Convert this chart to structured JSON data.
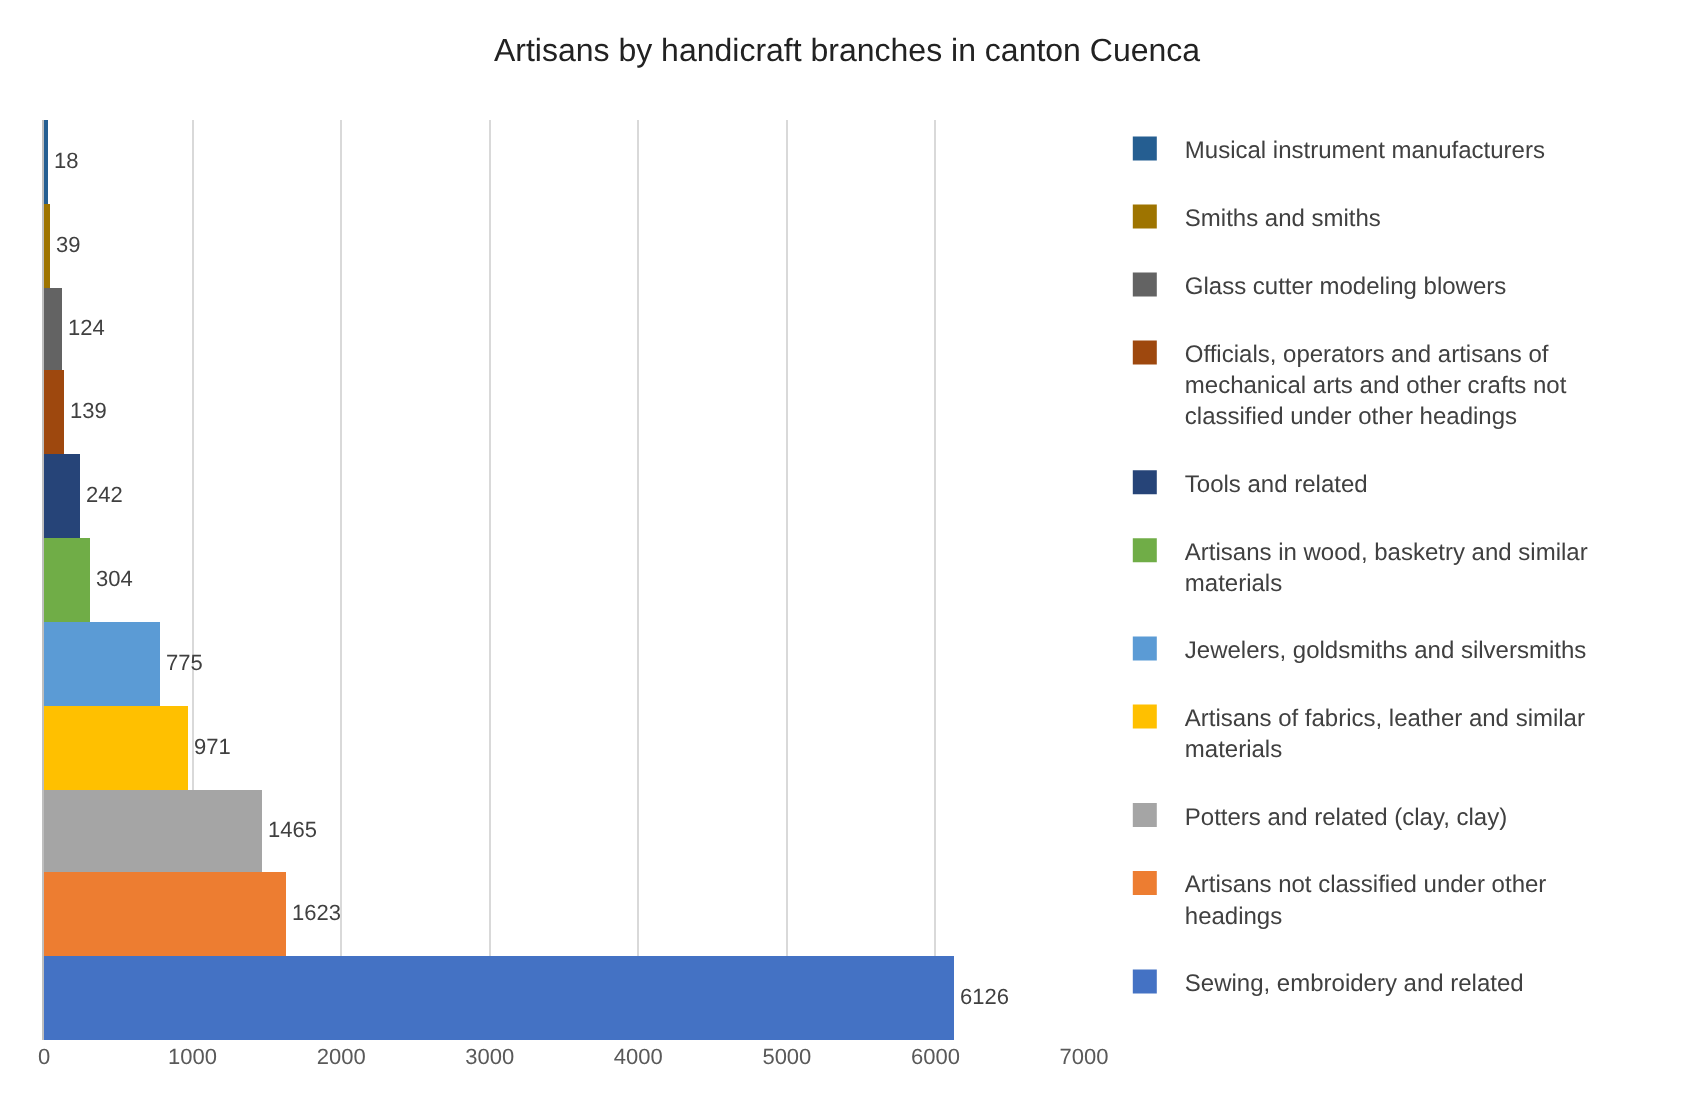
{
  "chart_data": {
    "type": "bar",
    "orientation": "horizontal",
    "title": "Artisans by handicraft branches in canton Cuenca",
    "categories": [
      null,
      null,
      null,
      null,
      null,
      null,
      null,
      null,
      null,
      null,
      null
    ],
    "series": [
      {
        "name": "Musical instrument manufacturers",
        "color": "#255e91",
        "values": [
          18,
          null,
          null,
          null,
          null,
          null,
          null,
          null,
          null,
          null,
          null
        ]
      },
      {
        "name": "Smiths and smiths",
        "color": "#9e7400",
        "values": [
          null,
          39,
          null,
          null,
          null,
          null,
          null,
          null,
          null,
          null,
          null
        ]
      },
      {
        "name": "Glass cutter modeling blowers",
        "color": "#636363",
        "values": [
          null,
          null,
          124,
          null,
          null,
          null,
          null,
          null,
          null,
          null,
          null
        ]
      },
      {
        "name": "Officials, operators and artisans of mechanical arts and other crafts not classified under other headings",
        "color": "#9e480e",
        "values": [
          null,
          null,
          null,
          139,
          null,
          null,
          null,
          null,
          null,
          null,
          null
        ]
      },
      {
        "name": "Tools and related",
        "color": "#264478",
        "values": [
          null,
          null,
          null,
          null,
          242,
          null,
          null,
          null,
          null,
          null,
          null
        ]
      },
      {
        "name": "Artisans in wood, basketry and similar materials",
        "color": "#70ad47",
        "values": [
          null,
          null,
          null,
          null,
          null,
          304,
          null,
          null,
          null,
          null,
          null
        ]
      },
      {
        "name": "Jewelers, goldsmiths and silversmiths",
        "color": "#5b9bd5",
        "values": [
          null,
          null,
          null,
          null,
          null,
          null,
          775,
          null,
          null,
          null,
          null
        ]
      },
      {
        "name": "Artisans of fabrics, leather and similar materials",
        "color": "#ffc000",
        "values": [
          null,
          null,
          null,
          null,
          null,
          null,
          null,
          971,
          null,
          null,
          null
        ]
      },
      {
        "name": "Potters and related (clay, clay)",
        "color": "#a5a5a5",
        "values": [
          null,
          null,
          null,
          null,
          null,
          null,
          null,
          null,
          1465,
          null,
          null
        ]
      },
      {
        "name": "Artisans not classified under other headings",
        "color": "#ed7d31",
        "values": [
          null,
          null,
          null,
          null,
          null,
          null,
          null,
          null,
          null,
          1623,
          null
        ]
      },
      {
        "name": "Sewing, embroidery and related",
        "color": "#4472c4",
        "values": [
          null,
          null,
          null,
          null,
          null,
          null,
          null,
          null,
          null,
          null,
          6126
        ]
      }
    ],
    "xlim": [
      0,
      7000
    ],
    "xticks": [
      0,
      1000,
      2000,
      3000,
      4000,
      5000,
      6000,
      7000
    ],
    "grid": "x",
    "legend": "right",
    "data_labels": true,
    "tick_labels": "x"
  }
}
